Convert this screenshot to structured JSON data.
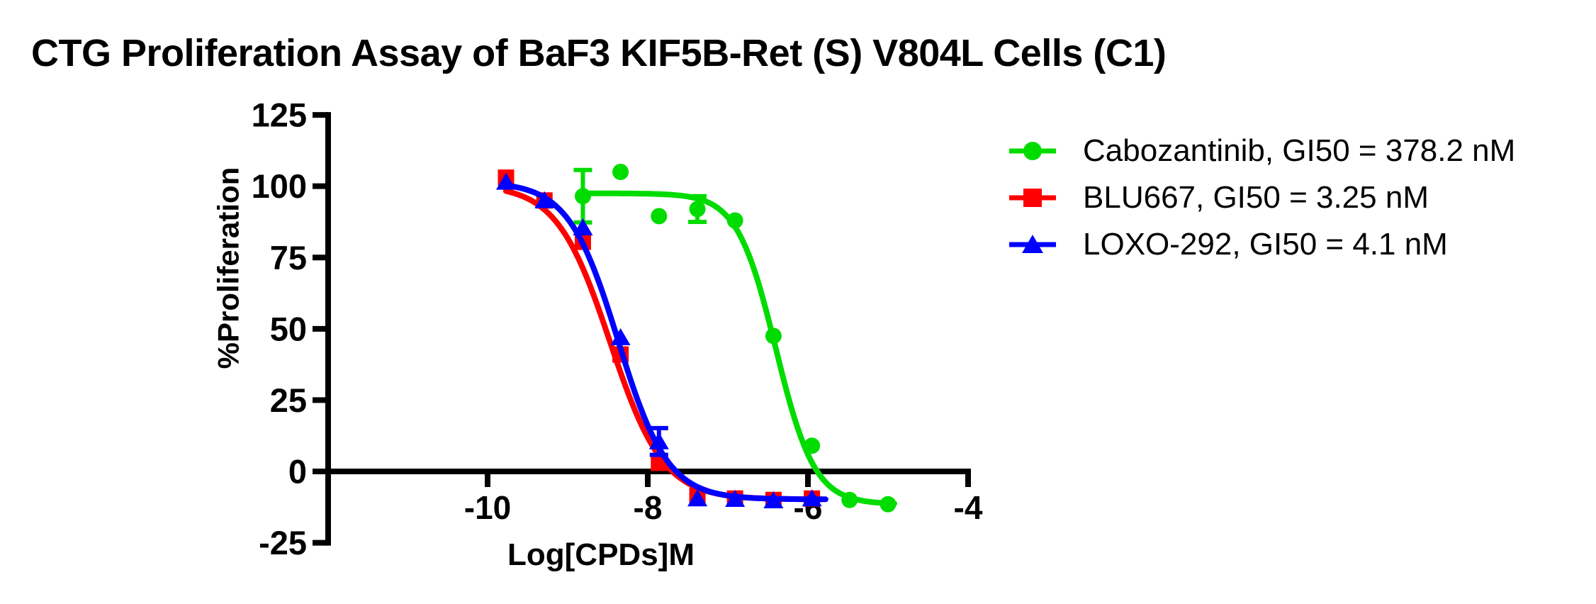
{
  "chart_data": {
    "type": "scatter",
    "title": "CTG Proliferation Assay of BaF3 KIF5B-Ret (S) V804L Cells (C1)",
    "xlabel": "Log[CPDs]M",
    "ylabel": "%Proliferation",
    "x_ticks": [
      -10,
      -8,
      -6,
      -4
    ],
    "y_ticks": [
      125,
      100,
      75,
      50,
      25,
      0,
      -25
    ],
    "xlim": [
      -11.99,
      -3.93
    ],
    "ylim": [
      -25,
      125
    ],
    "grid": false,
    "legend_position": "right-top",
    "axis_color": "#000000",
    "series": [
      {
        "name": "Cabozantinib",
        "legend": "Cabozantinib, GI50 = 378.2 nM",
        "gi50": "378.2 nM",
        "color": "#00DC00",
        "marker": "circle",
        "points": [
          {
            "x": -8.81,
            "y": 96.5,
            "err": 9.2
          },
          {
            "x": -8.34,
            "y": 105
          },
          {
            "x": -7.86,
            "y": 89.5
          },
          {
            "x": -7.38,
            "y": 92,
            "err": 4.5
          },
          {
            "x": -6.91,
            "y": 88
          },
          {
            "x": -6.43,
            "y": 47.5
          },
          {
            "x": -5.95,
            "y": 9
          },
          {
            "x": -5.48,
            "y": -10
          },
          {
            "x": -5.0,
            "y": -11.5
          }
        ],
        "fit": {
          "top": 97.5,
          "bottom": -11.5,
          "logec50": -6.4,
          "hill": 1.8,
          "range": [
            -8.81,
            -4.92
          ]
        }
      },
      {
        "name": "BLU667",
        "legend": "BLU667, GI50 = 3.25 nM",
        "gi50": "3.25 nM",
        "color": "#FF0000",
        "marker": "square",
        "points": [
          {
            "x": -9.77,
            "y": 103
          },
          {
            "x": -9.29,
            "y": 95
          },
          {
            "x": -8.81,
            "y": 80.5
          },
          {
            "x": -8.34,
            "y": 41
          },
          {
            "x": -7.86,
            "y": 3
          },
          {
            "x": -7.38,
            "y": -8.5
          },
          {
            "x": -6.91,
            "y": -9.5
          },
          {
            "x": -6.43,
            "y": -10
          },
          {
            "x": -5.95,
            "y": -9.5
          }
        ],
        "fit": {
          "top": 100.5,
          "bottom": -9.8,
          "logec50": -8.47,
          "hill": 1.3,
          "range": [
            -9.77,
            -5.83
          ]
        }
      },
      {
        "name": "LOXO-292",
        "legend": "LOXO-292, GI50 = 4.1 nM",
        "gi50": "4.1 nM",
        "color": "#0000FF",
        "marker": "triangle",
        "points": [
          {
            "x": -9.77,
            "y": 101.5
          },
          {
            "x": -9.29,
            "y": 95
          },
          {
            "x": -8.81,
            "y": 85.5
          },
          {
            "x": -8.34,
            "y": 47
          },
          {
            "x": -7.86,
            "y": 10.5,
            "err": 4.7
          },
          {
            "x": -7.38,
            "y": -9.5
          },
          {
            "x": -6.91,
            "y": -9.7
          },
          {
            "x": -6.43,
            "y": -10.2
          },
          {
            "x": -5.95,
            "y": -9.5
          }
        ],
        "fit": {
          "top": 101.5,
          "bottom": -9.8,
          "logec50": -8.37,
          "hill": 1.4,
          "range": [
            -9.77,
            -5.78
          ]
        }
      }
    ]
  }
}
